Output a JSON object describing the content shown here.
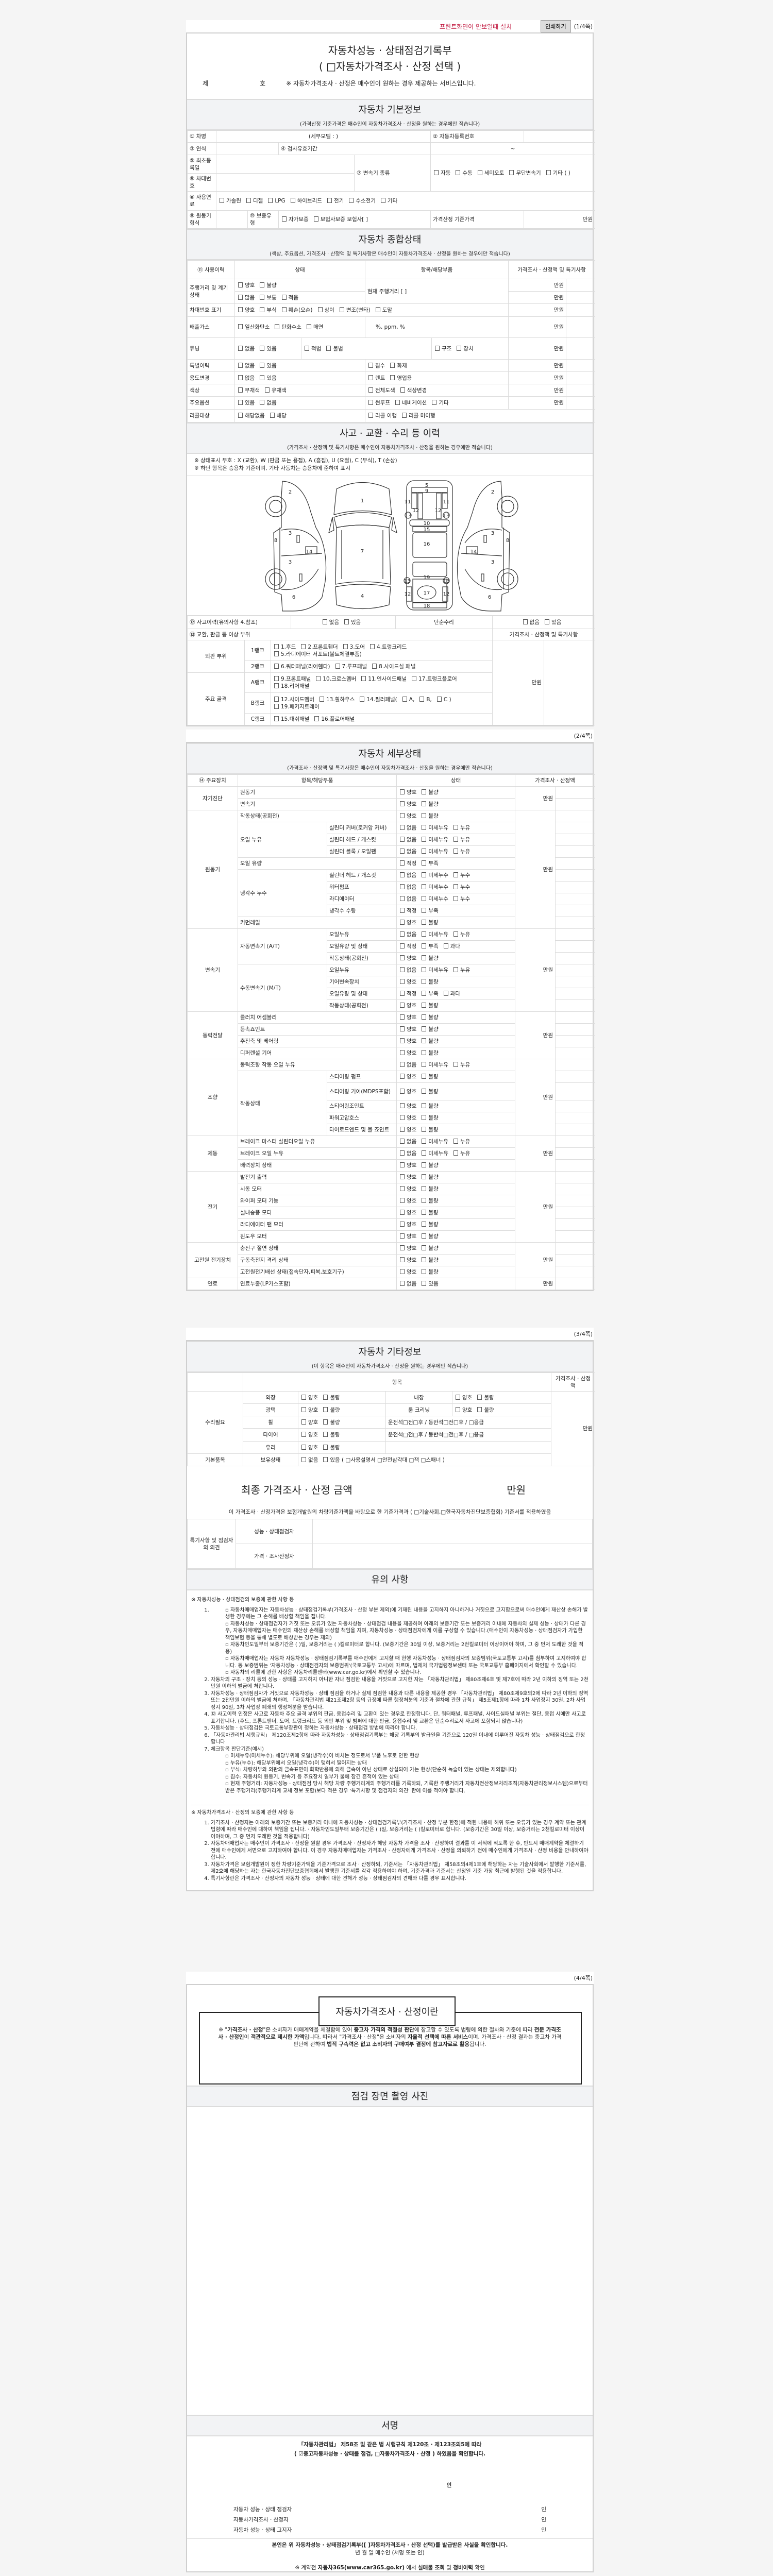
{
  "top": {
    "print_hint": "프린트화면이 안보일때 설치",
    "print_button": "인쇄하기"
  },
  "pages": {
    "p1": "(1/4쪽)",
    "p2": "(2/4쪽)",
    "p3": "(3/4쪽)",
    "p4": "(4/4쪽)"
  },
  "doc": {
    "title1": "자동차성능 · 상태점검기록부",
    "title2": "( □자동차가격조사 · 산정 선택 )",
    "no_prefix": "제",
    "no_suffix": "호",
    "notice": "※ 자동차가격조사 · 산정은 매수인이 원하는 경우 제공하는 서비스입니다."
  },
  "basic": {
    "title": "자동차 기본정보",
    "sub": "(가격산정 기준가격은 매수인이 자동차가격조사 · 산정을 원하는 경우에만 적습니다)",
    "car_name": "① 차명",
    "sub_model": "(세부모델 :                    )",
    "reg_no": "② 자동차등록번호",
    "year": "③ 연식",
    "inspection_period": "④ 검사유효기간",
    "tilde": "~",
    "first_reg": "⑤ 최초등록일",
    "trans_type": "⑦ 변속기 종류",
    "trans_opts": [
      "자동",
      "수동",
      "세미오토",
      "무단변속기",
      "기타 (            )"
    ],
    "vin": "⑥ 차대번호",
    "fuel": "⑧ 사용연료",
    "fuel_opts": [
      "가솔린",
      "디젤",
      "LPG",
      "하이브리드",
      "전기",
      "수소전기",
      "기타"
    ],
    "engine": "⑨ 원동기형식",
    "warranty": "⑩ 보증유형",
    "warranty_opts": [
      "자가보증",
      "보험사보증 보험사[            ]"
    ],
    "base_price": "가격산정 기준가격",
    "unit": "만원"
  },
  "status": {
    "title": "자동차 종합상태",
    "sub": "(색상, 주요옵션, 가격조사 · 산정액 및 특기사항은 매수인이 자동차가격조사 · 산정을 원하는 경우에만 적습니다)",
    "h_history": "⑪ 사용이력",
    "h_state": "상태",
    "h_item": "항목/해당부품",
    "h_price": "가격조사 · 산정액 및 특기사항",
    "unit": "만원",
    "mileage": {
      "label": "주행거리 및 계기상태",
      "opts1": [
        "양호",
        "불량"
      ],
      "opts2": [
        "많음",
        "보통",
        "적음"
      ],
      "current": "현재 주행거리 [                    ]"
    },
    "vin_mark": {
      "label": "차대번호 표기",
      "opts": [
        "양호",
        "부식",
        "훼손(오손)",
        "상이",
        "변조(변타)",
        "도말"
      ]
    },
    "emission": {
      "label": "배출가스",
      "opts": [
        "일산화탄소",
        "탄화수소",
        "매연"
      ],
      "values": "%,        ppm,        %"
    },
    "tuning": {
      "label": "튜닝",
      "opts1": [
        "없음",
        "있음"
      ],
      "opts2": [
        "적법",
        "불법"
      ],
      "opts3": [
        "구조",
        "장치"
      ]
    },
    "special": {
      "label": "특별이력",
      "opts1": [
        "없음",
        "있음"
      ],
      "opts2": [
        "침수",
        "화재"
      ]
    },
    "usage": {
      "label": "용도변경",
      "opts1": [
        "없음",
        "있음"
      ],
      "opts2": [
        "렌트",
        "영업용"
      ]
    },
    "color": {
      "label": "색상",
      "opts1": [
        "무채색",
        "유채색"
      ],
      "opts2": [
        "전체도색",
        "색상변경"
      ]
    },
    "options": {
      "label": "주요옵션",
      "opts1": [
        "있음",
        "없음"
      ],
      "opts2": [
        "썬루프",
        "네비게이션",
        "기타"
      ]
    },
    "recall": {
      "label": "리콜대상",
      "opts1": [
        "해당없음",
        "해당"
      ],
      "opts2": [
        "리콜 이행",
        "리콜 미이행"
      ]
    }
  },
  "accident": {
    "title": "사고 · 교환 · 수리 등 이력",
    "sub": "(가격조사 · 산정액 및 특기사항은 매수인이 자동차가격조사 · 산정을 원하는 경우에만 적습니다)",
    "note1": "※ 상태표시 부호 : X (교환), W (판금 또는 용접), A (흠집), U (요철), C (부식), T (손상)",
    "note2": "※ 하단 항목은 승용차 기준이며, 기타 자동차는 승용차에 준하여 표시",
    "diagram_labels": [
      "2",
      "3",
      "8",
      "14",
      "3",
      "6",
      "1",
      "7",
      "4",
      "5",
      "9",
      "11",
      "11",
      "12",
      "12",
      "13",
      "13",
      "10",
      "15",
      "16",
      "19",
      "13",
      "13",
      "12",
      "17",
      "12",
      "18",
      "2",
      "3",
      "8",
      "14",
      "3",
      "6"
    ],
    "history": "⑫ 사고이력(유의사항 4.참조)",
    "history_opts": [
      "없음",
      "있음"
    ],
    "simple": "단순수리",
    "simple_opts": [
      "없음",
      "있음"
    ],
    "parts": "⑬ 교환, 판금 등 이상 부위",
    "price_head": "가격조사 · 산정액 및 특기사항",
    "unit": "만원",
    "outer": "외판 부위",
    "frame": "주요 골격",
    "rank1": "1랭크",
    "rank1_opts": [
      "1.후드",
      "2.프론트휀더",
      "3.도어",
      "4.트렁크리드",
      "5.라디에이터 서포트(볼트체결부품)"
    ],
    "rank2": "2랭크",
    "rank2_opts": [
      "6.쿼터패널(리어휀다)",
      "7.루프패널",
      "8.사이드실 패널"
    ],
    "rankA": "A랭크",
    "rankA_opts": [
      "9.프론트패널",
      "10.크로스멤버",
      "11.인사이드패널",
      "17.트렁크플로어",
      "18.리어패널"
    ],
    "rankB": "B랭크",
    "rankB_opts": [
      "12.사이드멤버",
      "13.휠하우스",
      "14.필러패널(",
      "A,",
      "B,",
      "C )",
      "19.패키지트레이"
    ],
    "rankC": "C랭크",
    "rankC_opts": [
      "15.대쉬패널",
      "16.플로어패널"
    ]
  },
  "detail": {
    "title": "자동차 세부상태",
    "sub": "(가격조사 · 산정액 및 특기사항은 매수인이 자동차가격조사 · 산정을 원하는 경우에만 적습니다)",
    "h_device": "⑭ 주요장치",
    "h_item": "항목/해당부품",
    "h_state": "상태",
    "h_price": "가격조사 · 산정액",
    "unit": "만원",
    "groups": [
      {
        "name": "자기진단",
        "items": [
          {
            "name": "원동기",
            "opts": [
              "양호",
              "불량"
            ]
          },
          {
            "name": "변속기",
            "opts": [
              "양호",
              "불량"
            ]
          }
        ]
      },
      {
        "name": "원동기",
        "items": [
          {
            "name": "작동상태(공회전)",
            "opts": [
              "양호",
              "불량"
            ]
          },
          {
            "name": "오일 누유",
            "subs": [
              {
                "name": "실린더 커버(로커암 커버)",
                "opts": [
                  "없음",
                  "미세누유",
                  "누유"
                ]
              },
              {
                "name": "실린더 헤드 / 개스킷",
                "opts": [
                  "없음",
                  "미세누유",
                  "누유"
                ]
              },
              {
                "name": "실린더 블록 / 오일팬",
                "opts": [
                  "없음",
                  "미세누유",
                  "누유"
                ]
              }
            ]
          },
          {
            "name": "오일 유량",
            "opts": [
              "적정",
              "부족"
            ]
          },
          {
            "name": "냉각수 누수",
            "subs": [
              {
                "name": "실린더 헤드 / 개스킷",
                "opts": [
                  "없음",
                  "미세누수",
                  "누수"
                ]
              },
              {
                "name": "워터펌프",
                "opts": [
                  "없음",
                  "미세누수",
                  "누수"
                ]
              },
              {
                "name": "라디에이터",
                "opts": [
                  "없음",
                  "미세누수",
                  "누수"
                ]
              },
              {
                "name": "냉각수 수량",
                "opts": [
                  "적정",
                  "부족"
                ]
              }
            ]
          },
          {
            "name": "커먼레일",
            "opts": [
              "양호",
              "불량"
            ]
          }
        ]
      },
      {
        "name": "변속기",
        "items": [
          {
            "name": "자동변속기 (A/T)",
            "subs": [
              {
                "name": "오일누유",
                "opts": [
                  "없음",
                  "미세누유",
                  "누유"
                ]
              },
              {
                "name": "오일유량 및 상태",
                "opts": [
                  "적정",
                  "부족",
                  "과다"
                ]
              },
              {
                "name": "작동상태(공회전)",
                "opts": [
                  "양호",
                  "불량"
                ]
              }
            ]
          },
          {
            "name": "수동변속기 (M/T)",
            "subs": [
              {
                "name": "오일누유",
                "opts": [
                  "없음",
                  "미세누유",
                  "누유"
                ]
              },
              {
                "name": "기어변속장치",
                "opts": [
                  "양호",
                  "불량"
                ]
              },
              {
                "name": "오일유량 및 상태",
                "opts": [
                  "적정",
                  "부족",
                  "과다"
                ]
              },
              {
                "name": "작동상태(공회전)",
                "opts": [
                  "양호",
                  "불량"
                ]
              }
            ]
          }
        ]
      },
      {
        "name": "동력전달",
        "items": [
          {
            "name": "클러치 어셈블리",
            "opts": [
              "양호",
              "불량"
            ]
          },
          {
            "name": "등속죠인트",
            "opts": [
              "양호",
              "불량"
            ]
          },
          {
            "name": "추진축 및 베어링",
            "opts": [
              "양호",
              "불량"
            ]
          },
          {
            "name": "디퍼렌셜 기어",
            "opts": [
              "양호",
              "불량"
            ]
          }
        ]
      },
      {
        "name": "조향",
        "items": [
          {
            "name": "동력조향 작동 오일 누유",
            "opts": [
              "없음",
              "미세누유",
              "누유"
            ]
          },
          {
            "name": "작동상태",
            "subs": [
              {
                "name": "스티어링 펌프",
                "opts": [
                  "양호",
                  "불량"
                ]
              },
              {
                "name": "스티어링 기어(MDPS포함)",
                "opts": [
                  "양호",
                  "불량"
                ]
              },
              {
                "name": "스티어링조인트",
                "opts": [
                  "양호",
                  "불량"
                ]
              },
              {
                "name": "파워고압호스",
                "opts": [
                  "양호",
                  "불량"
                ]
              },
              {
                "name": "타이로드엔드 및 볼 죠인트",
                "opts": [
                  "양호",
                  "불량"
                ]
              }
            ]
          }
        ]
      },
      {
        "name": "제동",
        "items": [
          {
            "name": "브레이크 마스터 실린더오일 누유",
            "opts": [
              "없음",
              "미세누유",
              "누유"
            ]
          },
          {
            "name": "브레이크 오일 누유",
            "opts": [
              "없음",
              "미세누유",
              "누유"
            ]
          },
          {
            "name": "배력장치 상태",
            "opts": [
              "양호",
              "불량"
            ]
          }
        ]
      },
      {
        "name": "전기",
        "items": [
          {
            "name": "발전기 출력",
            "opts": [
              "양호",
              "불량"
            ]
          },
          {
            "name": "시동 모터",
            "opts": [
              "양호",
              "불량"
            ]
          },
          {
            "name": "와이퍼 모터 기능",
            "opts": [
              "양호",
              "불량"
            ]
          },
          {
            "name": "실내송풍 모터",
            "opts": [
              "양호",
              "불량"
            ]
          },
          {
            "name": "라디에이터 팬 모터",
            "opts": [
              "양호",
              "불량"
            ]
          },
          {
            "name": "윈도우 모터",
            "opts": [
              "양호",
              "불량"
            ]
          }
        ]
      },
      {
        "name": "고전원 전기장치",
        "items": [
          {
            "name": "충전구 절연 상태",
            "opts": [
              "양호",
              "불량"
            ]
          },
          {
            "name": "구동축전지 격리 상태",
            "opts": [
              "양호",
              "불량"
            ]
          },
          {
            "name": "고전원전기배선 상태(접속단자,피복,보호기구)",
            "opts": [
              "양호",
              "불량"
            ]
          }
        ]
      },
      {
        "name": "연료",
        "items": [
          {
            "name": "연료누출(LP가스포함)",
            "opts": [
              "없음",
              "있음"
            ]
          }
        ]
      }
    ]
  },
  "etc": {
    "title": "자동차 기타정보",
    "sub": "(이 항목은 매수인이 자동차가격조사 · 산정을 원하는 경우에만 적습니다)",
    "h_item": "항목",
    "h_price": "가격조사 · 산정액",
    "unit": "만원",
    "repair": "수리필요",
    "basic_items": "기본품목",
    "exterior": "외장",
    "interior": "내장",
    "polish": "광택",
    "room": "룸 크리닝",
    "wheel": "휠",
    "tire": "타이어",
    "glass": "유리",
    "owned": "보유상태",
    "good_bad": [
      "양호",
      "불량"
    ],
    "seat_text": "운전석□전□후 / 동반석□전□후 / □응급",
    "owned_opts": [
      "없음",
      "있음 ( □사용설명서 □안전삼각대 □잭 □스패너 )"
    ]
  },
  "final": {
    "title": "최종 가격조사 · 산정 금액",
    "unit": "만원",
    "statement": "이 가격조사 · 산정가격은 보험개발원의 차량기준가액을 바탕으로 한 기준가격과 ( □기술사회,□한국자동차진단보증협회) 기준서를 적용하였음"
  },
  "opinion": {
    "label": "특기사항 및 점검자의 의견",
    "inspector": "성능 · 상태점검자",
    "appraiser": "가격 · 조사산정자"
  },
  "caution": {
    "title": "유의 사항",
    "sect1": "※ 자동차성능 · 상태점검의 보증에 관한 사항 등",
    "s1_item1_bullets": [
      "자동차매매업자는 자동차성능 · 상태점검기록부(가격조사 · 산정 부분 제외)에 기재된 내용을 고지하지 아니하거나 거짓으로 고지함으로써 매수인에게 재산상 손해가 발생한 경우에는 그 손해를 배상할 책임을 집니다.",
      "자동차성능 · 상태점검자가 거짓 또는 오류가 있는 자동차성능 · 상태점검 내용을 제공하여 아래의 보증기간 또는 보증거리 이내에 자동차의 실제 성능 · 상태가 다른 경우, 자동차매매업자는 매수인의 재산상 손해를 배상할 책임을 지며, 자동차성능 · 상태점검자에게 이를 구상할 수 있습니다.(매수인이 자동차성능 · 상태점검자가 가입한 책임보험 등을 통해 별도로 배상받는 경우는 제외)",
      "자동차인도일부터 보증기간은 (      )일, 보증거리는 (      )킬로미터로 합니다. (보증기간은 30일 이상, 보증거리는 2천킬로미터 이상이어야 하며, 그 중 먼저 도래한 것을 적용)",
      "자동차매매업자는 자동차 자동차성능 · 상태점검기록부를 매수인에게 고지할 때 현행 자동차성능 · 상태점검자의 보증범위(국토교통부 고시)를 첨부하여 고지하여야 합니다. 동 보증범위는 '자동차성능 · 상태점검자의 보증범위'(국토교통부 고시)에 따르며, 법제처 국가법령정보센터 또는 국토교통부 홈페이지에서 확인할 수 있습니다.",
      "자동차의 리콜에 관한 사항은 자동차리콜센터(www.car.go.kr)에서 확인할 수 있습니다."
    ],
    "s1_items": [
      "자동차의 구조 · 장치 등의 성능 · 상태를 고지하지 아니한 자나 점검한 내용을 거짓으로 고지한 자는 「자동차관리법」 제80조제6호 및 제7호에 따라 2년 이하의 징역 또는 2천만원 이하의 벌금에 처합니다.",
      "자동차성능 · 상태점검자가 거짓으로 자동차성능 · 상태 점검을 하거나 실제 점검한 내용과 다른 내용을 제공한 경우 「자동차관리법」 제80조제9호의2에 따라 2년 이하의 징역 또는 2천만원 이하의 벌금에 처하며, 「자동차관리법 제21조제2항 등의 규정에 따른 행정처분의 기준과 절차에 관한 규칙」 제5조제1항에 따라 1차 사업정지 30일, 2차 사업정지 90일, 3차 사업장 폐쇄의 행정처분을 받습니다.",
      "⑫ 사고이력 인정은 사고로 자동차 주요 골격 부위의 판금, 용접수리 및 교환이 있는 경우로 한정합니다. 단, 쿼터패널, 루프패널, 사이드실패널 부위는 절단, 용접 시에만 사고로 표기합니다. (후드, 프론트펜더, 도어, 트렁크리드 등 외판 부위 및 범퍼에 대한 판금, 용접수리 및 교환은 단순수리로서 사고에 포함되지 않습니다)",
      "자동차성능 · 상태점검은 국토교통부장관이 정하는 자동차성능 · 상태점검 방법에 따라야 합니다.",
      "「자동차관리법 시행규칙」 제120조제2항에 따라 자동차성능 · 상태점검기록부는 해당 기록부의 발급일을 기준으로 120일 이내에 이루어진 자동차 성능 · 상태점검으로 한정합니다",
      "체크항목 판단기준(예시)"
    ],
    "s1_item7_bullets": [
      "미세누유(미세누수): 해당부위에 오일(냉각수)이 비치는 정도로서 부품 노후로 인한 현상",
      "누유(누수): 해당부위에서 오일(냉각수)이 맺혀서 떨어지는 상태",
      "부식: 차량하부와 외판의 금속표면이 화학반응에 의해 금속이 아닌 상태로 상실되어 가는 현상(단순히 녹슬어 있는 상태는 제외합니다)",
      "침수: 자동차의 원동기, 변속기 등 주요장치 일부가 물에 잠긴 흔적이 있는 상태",
      "현재 주행거리: 자동차성능 · 상태점검 당시 해당 차량 주행거리계의 주행거리를 기록하되, 기록한 주행거리가 자동차전산정보처리조직(자동차관리정보시스템)으로부터 받은 주행거리(주행거리계 교체 정보 포함)보다 적은 경우 '특기사항 및 점검자의 의견' 란에 이를 적어야 합니다."
    ],
    "sect2": "※ 자동차가격조사 · 산정의 보증에 관한 사항 등",
    "s2_items": [
      "가격조사 · 산정자는 아래의 보증기간 또는 보증거리 이내에 자동차성능 · 상태점검기록부(가격조사 · 산정 부분 한정)에 적힌 내용에 허위 또는 오류가 있는 경우 계약 또는 관계법령에 따라 매수인에 대하여 책임을 집니다.  · 자동차인도일부터 보증기간은 (      )일, 보증거리는 (      )킬로미터로 합니다. (보증기간은 30일 이상, 보증거리는 2천킬로미터 이상이어야하며, 그 중 먼저 도래한 것을 적용합니다)",
      "자동차매매업자는 매수인이 가격조사 · 산정을 원할 경우 가격조사 · 산정자가 해당 자동차 가격을 조사 · 산정하여 결과를 이 서식에 적도록 한 후, 반드시 매매계약을 체결하기 전에 매수인에게 서면으로 고지하여야 합니다. 이 경우 자동차매매업자는 가격조사 · 산정자에게 가격조사 · 산정을 의뢰하기 전에 매수인에게 가격조사 · 산정 비용을 안내하여야 합니다.",
      "자동차가격은 보험개발원이 정한 차량기준가액을 기준가격으로 조사 · 산정하되, 기준서는 「자동차관리법」 제58조의4제1호에 해당하는 자는 기술사회에서 발행한 기준서를, 제2호에 해당하는 자는 한국자동차진단보증협회에서 발행한 기준서를 각각 적용하여야 하며, 기준가격과 기준서는 산정일 기준 가장 최근에 발행된 것을 적용합니다.",
      "특기사항란은 가격조사 · 산정자의 자동차 성능 · 상태에 대한 견해가 성능 · 상태점검자의 견해와 다를 경우 표시합니다."
    ]
  },
  "about": {
    "title": "자동차가격조사 · 산정이란",
    "segments": [
      {
        "text": "※ \"",
        "bold": false
      },
      {
        "text": "가격조사 · 산정",
        "bold": true
      },
      {
        "text": "\"은 소비자가 매매계약을 체결함에 있어 ",
        "bold": false
      },
      {
        "text": "중고차 가격의 적절성 판단",
        "bold": true
      },
      {
        "text": "에 참고할 수 있도록 법령에 의한 절차와 기준에 따라 ",
        "bold": false
      },
      {
        "text": "전문 가격조사 · 산정인",
        "bold": true
      },
      {
        "text": "이 ",
        "bold": false
      },
      {
        "text": "객관적으로 제시한 가액",
        "bold": true
      },
      {
        "text": "입니다. 따라서 \"가격조사 · 산정\"은 소비자의 ",
        "bold": false
      },
      {
        "text": "자율적 선택에 따른 서비스",
        "bold": true
      },
      {
        "text": "이며, 가격조사 · 산정 결과는 중고차 가격판단에 관하여 ",
        "bold": false
      },
      {
        "text": "법적 구속력은 없고 소비자의 구매여부 결정에 참고자료로 활용",
        "bold": true
      },
      {
        "text": "됩니다.",
        "bold": false
      }
    ]
  },
  "photo": {
    "title": "점검 장면 촬영 사진"
  },
  "signature": {
    "title": "서명",
    "line1": "「자동차관리법」 제58조 및 같은 법 시행규칙 제120조 · 제123조의5에 따라",
    "line2": "( ☑중고자동차성능 · 상태를 점검, □자동차가격조사 · 산정 ) 하였음을 확인합니다.",
    "seal": "인",
    "signers": [
      {
        "role": "자동차 성능 · 상태 점검자",
        "seal": "인"
      },
      {
        "role": "자동차가격조사 · 산정자",
        "seal": "인"
      },
      {
        "role": "자동차 성능 · 상태 고지자",
        "seal": "인"
      }
    ],
    "confirm": "본인은 위 자동차성능 · 상태점검기록부([   ]자동차가격조사 · 산정 선택)를 발급받은 사실을 확인합니다.",
    "date_line": "년     월     일      매수인                 (서명 또는 인)",
    "footer": [
      {
        "text": "※ 계약전 ",
        "bold": false
      },
      {
        "text": "자동차365(www.car365.go.kr)",
        "bold": true
      },
      {
        "text": " 에서 ",
        "bold": false
      },
      {
        "text": "실매물 조회",
        "bold": true
      },
      {
        "text": " 및 ",
        "bold": false
      },
      {
        "text": "정비이력",
        "bold": true
      },
      {
        "text": " 확인",
        "bold": false
      }
    ]
  }
}
